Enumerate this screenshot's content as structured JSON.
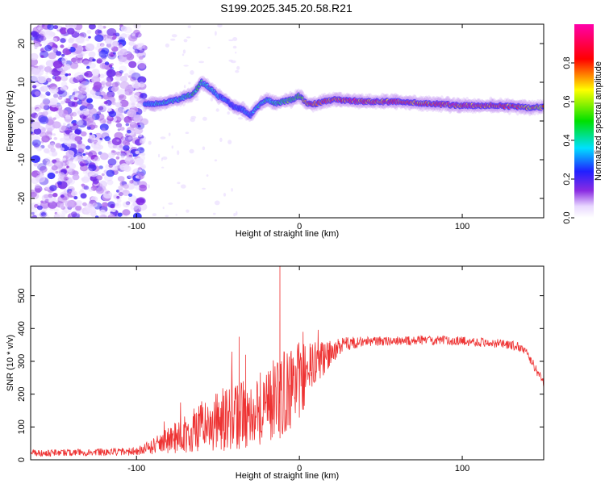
{
  "page": {
    "title": "S199.2025.345.20.58.R21"
  },
  "chart_data": [
    {
      "type": "heatmap",
      "title": "S199.2025.345.20.58.R21",
      "xlabel": "Height of straight line (km)",
      "ylabel": "Frequency (Hz)",
      "xlim": [
        -165,
        150
      ],
      "ylim": [
        -25,
        25
      ],
      "xticks": [
        -100,
        0,
        100
      ],
      "yticks": [
        -20,
        -10,
        0,
        10,
        20
      ],
      "colorbar": {
        "label": "Normalized spectral amplitude",
        "range": [
          0.0,
          1.0
        ],
        "ticks": [
          0.0,
          0.2,
          0.4,
          0.6,
          0.8
        ]
      },
      "noise_region_x": [
        -165,
        -95
      ],
      "ridge": {
        "x": [
          -95,
          -85,
          -75,
          -65,
          -60,
          -55,
          -50,
          -45,
          -40,
          -35,
          -30,
          -25,
          -20,
          -15,
          -10,
          -5,
          0,
          5,
          10,
          20,
          40,
          60,
          80,
          100,
          120,
          140,
          150
        ],
        "freq": [
          4.5,
          4.5,
          5.5,
          7.0,
          10.0,
          8.5,
          6.5,
          5.5,
          3.5,
          3.0,
          1.5,
          4.0,
          5.5,
          4.5,
          5.0,
          5.5,
          6.5,
          4.5,
          4.5,
          5.5,
          5.0,
          5.0,
          4.5,
          4.0,
          4.0,
          3.5,
          3.5
        ],
        "amp": [
          0.35,
          0.45,
          0.45,
          0.5,
          0.55,
          0.45,
          0.4,
          0.35,
          0.3,
          0.35,
          0.35,
          0.45,
          0.45,
          0.5,
          0.55,
          0.6,
          0.6,
          0.85,
          0.95,
          0.95,
          0.95,
          0.95,
          0.9,
          1.0,
          0.95,
          0.85,
          0.8
        ]
      }
    },
    {
      "type": "line",
      "xlabel": "Height of straight line (km)",
      "ylabel": "SNR (10 * v/v)",
      "xlim": [
        -165,
        150
      ],
      "ylim": [
        0,
        590
      ],
      "xticks": [
        -100,
        0,
        100
      ],
      "yticks": [
        0,
        100,
        200,
        300,
        400,
        500
      ],
      "color": "#ee3333",
      "envelope": {
        "x": [
          -165,
          -100,
          -90,
          -80,
          -70,
          -60,
          -50,
          -40,
          -30,
          -20,
          -10,
          0,
          10,
          20,
          30,
          40,
          60,
          80,
          100,
          120,
          135,
          140,
          145,
          150
        ],
        "mean": [
          20,
          25,
          40,
          60,
          80,
          100,
          115,
          130,
          150,
          170,
          200,
          240,
          290,
          330,
          355,
          360,
          362,
          365,
          362,
          355,
          345,
          320,
          280,
          230
        ],
        "spread": [
          10,
          12,
          25,
          40,
          60,
          80,
          90,
          100,
          110,
          120,
          130,
          120,
          70,
          35,
          20,
          15,
          14,
          14,
          14,
          14,
          14,
          15,
          15,
          15
        ]
      },
      "spikes": [
        {
          "x": -37,
          "y": 375
        },
        {
          "x": -12,
          "y": 590
        },
        {
          "x": -33,
          "y": 320
        }
      ]
    }
  ]
}
